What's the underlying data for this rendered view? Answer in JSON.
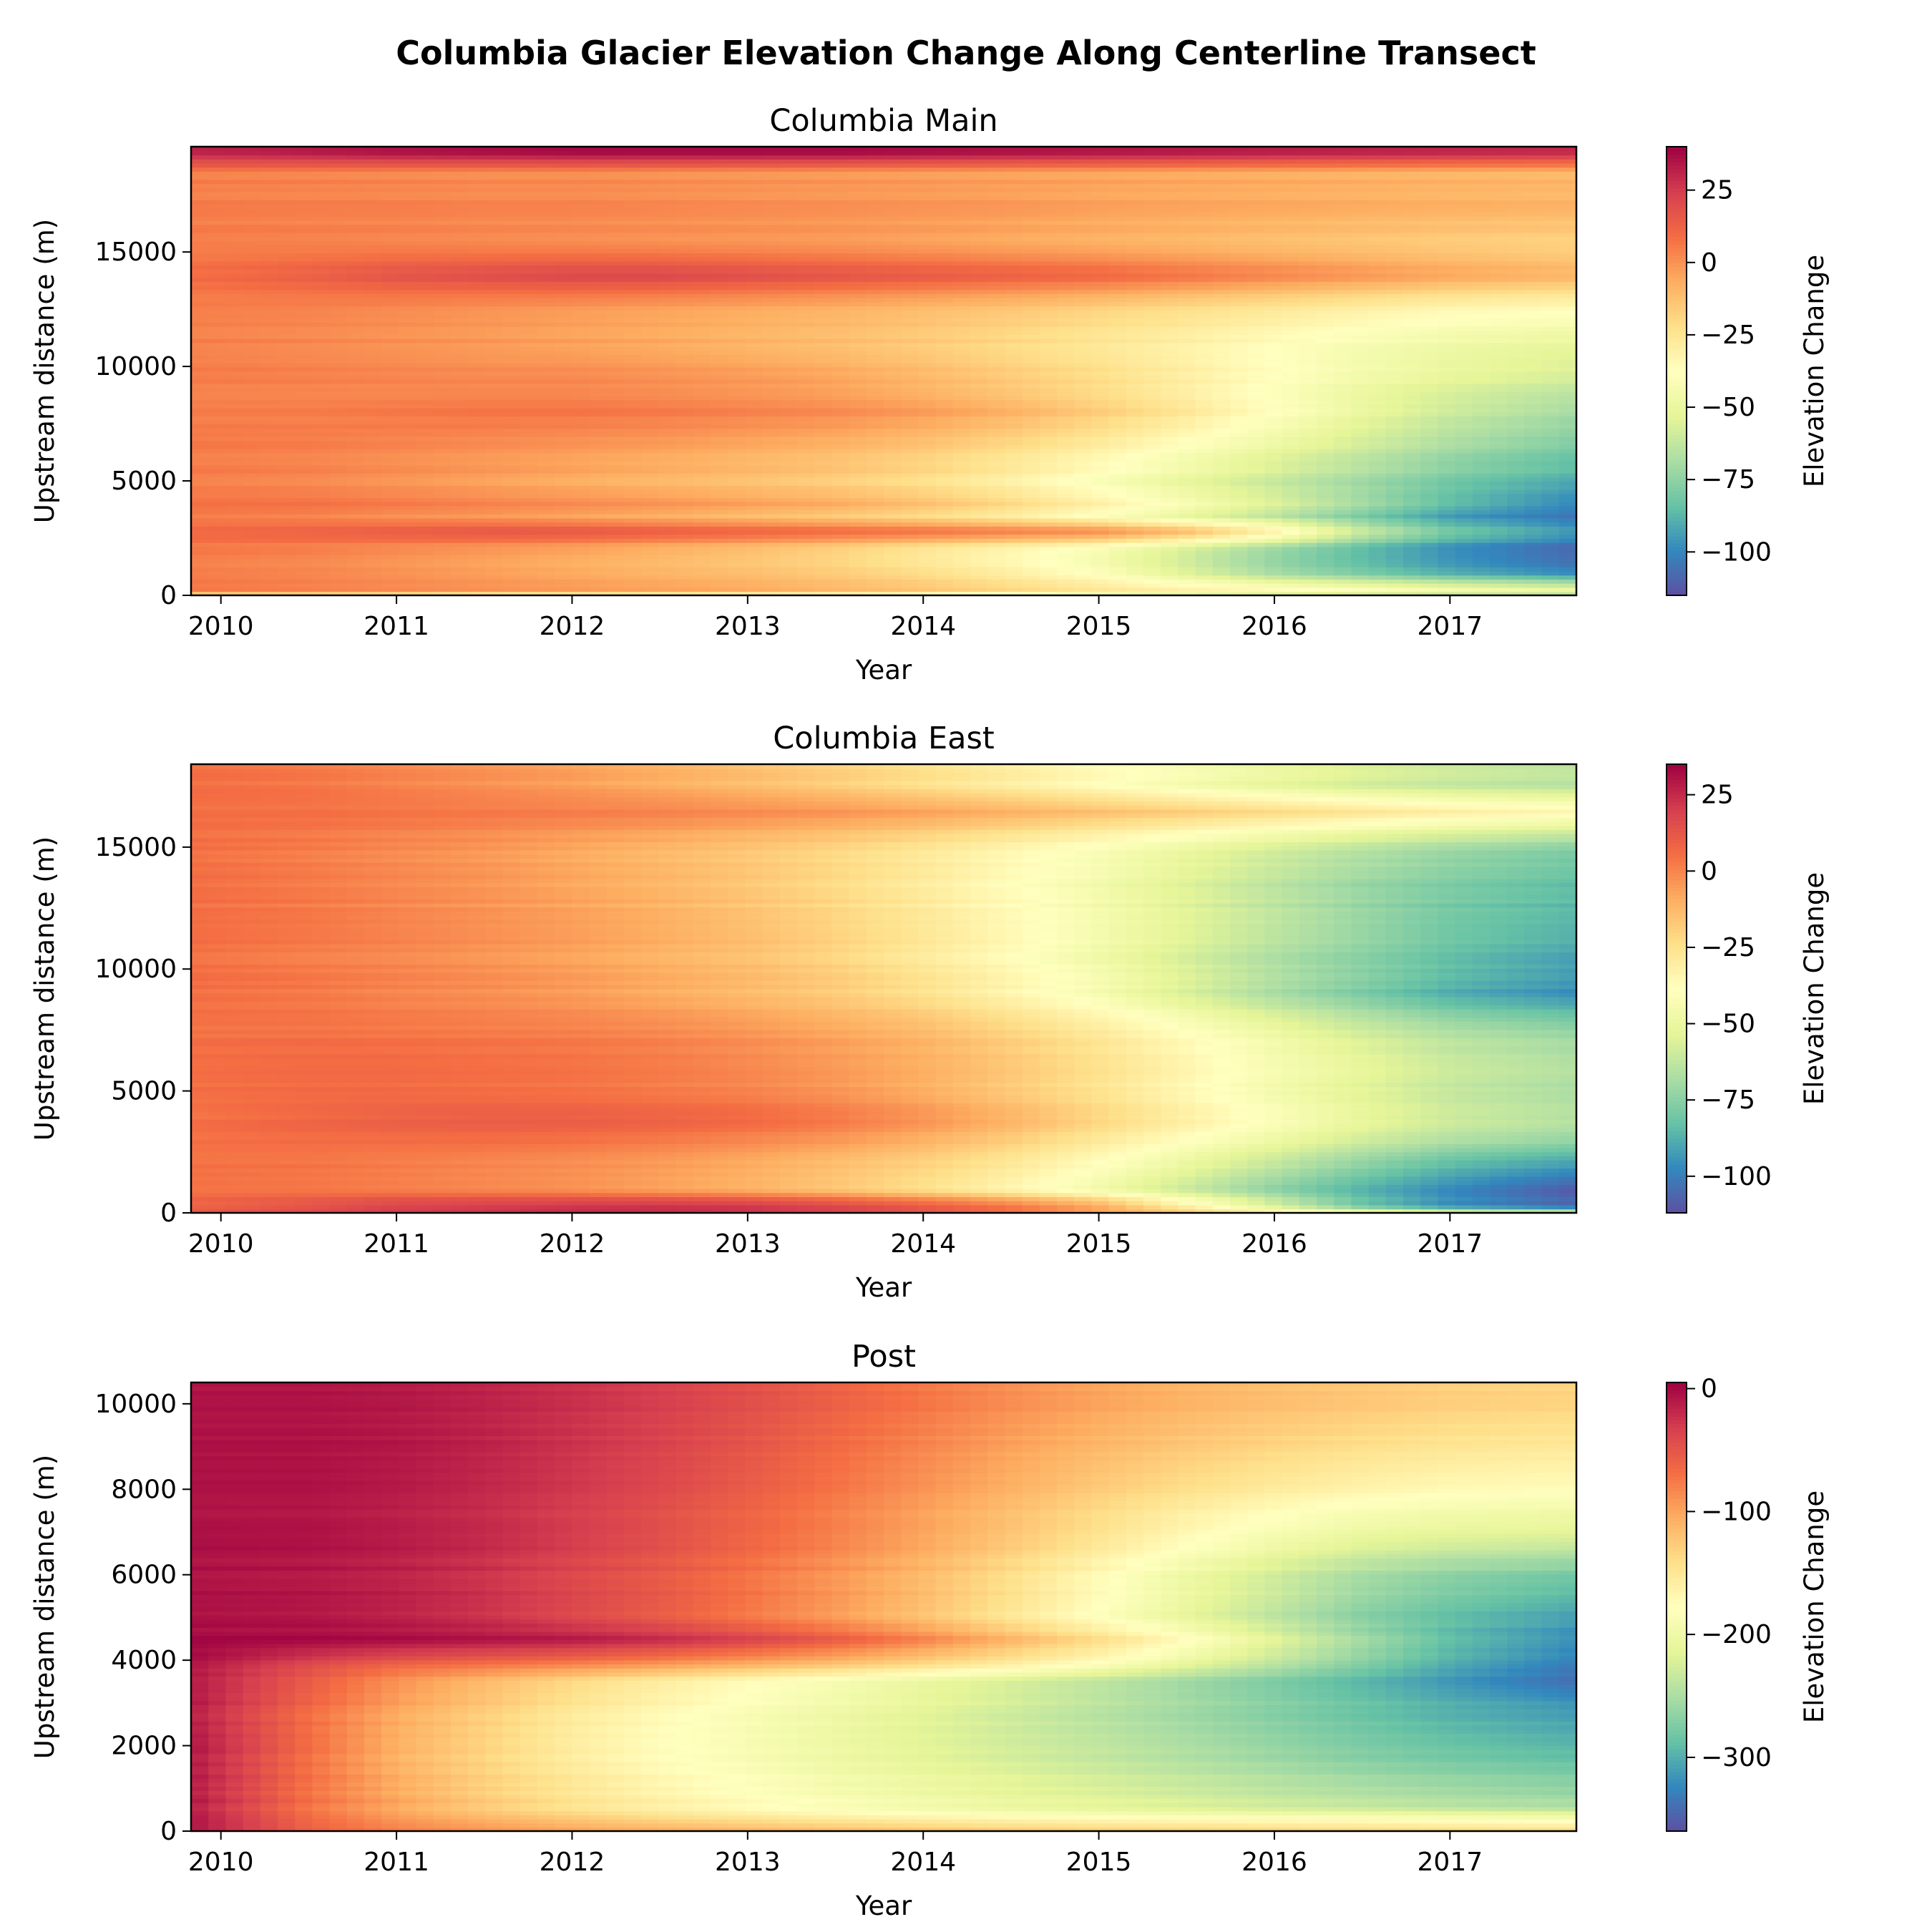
{
  "figure": {
    "title": "Columbia Glacier Elevation Change Along Centerline Transect"
  },
  "chart_data": [
    {
      "type": "heatmap",
      "title": "Columbia Main",
      "xlabel": "Year",
      "ylabel": "Upstream distance (m)",
      "colorbar_label": "Elevation Change",
      "colormap": "Spectral",
      "xlim": [
        2009.83,
        2017.72
      ],
      "ylim": [
        0,
        19600
      ],
      "xticks": [
        2010,
        2011,
        2012,
        2013,
        2014,
        2015,
        2016,
        2017
      ],
      "xtick_labels": [
        "2010",
        "2011",
        "2012",
        "2013",
        "2014",
        "2015",
        "2016",
        "2017"
      ],
      "yticks": [
        0,
        5000,
        10000,
        15000
      ],
      "ytick_labels": [
        "0",
        "5000",
        "10000",
        "15000"
      ],
      "clim": [
        -115,
        40
      ],
      "cbar_ticks": [
        25,
        0,
        -25,
        -50,
        -75,
        -100
      ],
      "cbar_tick_labels": [
        "25",
        "0",
        "−25",
        "−50",
        "−75",
        "−100"
      ],
      "x": [
        2009.83,
        2010.5,
        2011.0,
        2011.5,
        2012.0,
        2012.5,
        2013.0,
        2013.5,
        2014.0,
        2014.5,
        2015.0,
        2015.5,
        2016.0,
        2016.5,
        2017.0,
        2017.72
      ],
      "y": [
        0,
        300,
        1000,
        2000,
        2800,
        3500,
        4000,
        5000,
        6500,
        8000,
        9500,
        11000,
        12500,
        14000,
        15500,
        17000,
        18500,
        19300
      ],
      "z": [
        [
          -20,
          -22,
          -25,
          -28,
          -30,
          -32,
          -34,
          -36,
          -40,
          -45,
          -50,
          -52,
          -55,
          -58,
          -60,
          -62
        ],
        [
          8,
          6,
          4,
          2,
          0,
          -2,
          -4,
          -8,
          -12,
          -18,
          -24,
          -30,
          -35,
          -40,
          -45,
          -50
        ],
        [
          5,
          3,
          0,
          -3,
          -6,
          -9,
          -12,
          -16,
          -22,
          -30,
          -40,
          -55,
          -70,
          -80,
          -90,
          -100
        ],
        [
          5,
          3,
          0,
          -3,
          -6,
          -10,
          -14,
          -20,
          -28,
          -36,
          -45,
          -60,
          -75,
          -88,
          -100,
          -110
        ],
        [
          10,
          12,
          14,
          16,
          16,
          14,
          12,
          10,
          8,
          5,
          2,
          -10,
          -30,
          -60,
          -80,
          -95
        ],
        [
          5,
          3,
          0,
          -2,
          -5,
          -8,
          -12,
          -16,
          -22,
          -30,
          -40,
          -52,
          -65,
          -80,
          -95,
          -105
        ],
        [
          8,
          8,
          6,
          4,
          2,
          0,
          -3,
          -6,
          -12,
          -20,
          -30,
          -42,
          -55,
          -70,
          -85,
          -100
        ],
        [
          5,
          3,
          0,
          -3,
          -6,
          -9,
          -12,
          -16,
          -22,
          -30,
          -40,
          -50,
          -60,
          -70,
          -80,
          -90
        ],
        [
          5,
          4,
          2,
          0,
          -2,
          -4,
          -7,
          -10,
          -15,
          -22,
          -30,
          -40,
          -50,
          -60,
          -70,
          -80
        ],
        [
          5,
          5,
          6,
          7,
          7,
          6,
          4,
          2,
          -2,
          -8,
          -16,
          -26,
          -38,
          -50,
          -60,
          -70
        ],
        [
          5,
          4,
          3,
          2,
          2,
          0,
          -2,
          -5,
          -10,
          -16,
          -22,
          -30,
          -38,
          -46,
          -52,
          -58
        ],
        [
          5,
          3,
          1,
          -1,
          -3,
          -5,
          -8,
          -11,
          -15,
          -20,
          -25,
          -30,
          -36,
          -42,
          -46,
          -50
        ],
        [
          5,
          4,
          2,
          0,
          -2,
          -4,
          -6,
          -8,
          -11,
          -14,
          -18,
          -22,
          -26,
          -30,
          -34,
          -36
        ],
        [
          10,
          14,
          18,
          20,
          22,
          22,
          20,
          18,
          16,
          14,
          12,
          8,
          4,
          0,
          -4,
          -8
        ],
        [
          5,
          4,
          3,
          2,
          1,
          0,
          -1,
          -2,
          -4,
          -6,
          -8,
          -10,
          -12,
          -14,
          -16,
          -18
        ],
        [
          5,
          4,
          4,
          3,
          3,
          2,
          1,
          0,
          -1,
          -2,
          -4,
          -5,
          -6,
          -7,
          -8,
          -9
        ],
        [
          5,
          4,
          3,
          2,
          2,
          1,
          0,
          -1,
          -2,
          -3,
          -4,
          -5,
          -6,
          -7,
          -8,
          -9
        ],
        [
          30,
          32,
          34,
          35,
          36,
          36,
          36,
          36,
          35,
          34,
          33,
          32,
          31,
          30,
          29,
          28
        ]
      ]
    },
    {
      "type": "heatmap",
      "title": "Columbia East",
      "xlabel": "Year",
      "ylabel": "Upstream distance (m)",
      "colorbar_label": "Elevation Change",
      "colormap": "Spectral",
      "xlim": [
        2009.83,
        2017.72
      ],
      "ylim": [
        0,
        18400
      ],
      "xticks": [
        2010,
        2011,
        2012,
        2013,
        2014,
        2015,
        2016,
        2017
      ],
      "xtick_labels": [
        "2010",
        "2011",
        "2012",
        "2013",
        "2014",
        "2015",
        "2016",
        "2017"
      ],
      "yticks": [
        0,
        5000,
        10000,
        15000
      ],
      "ytick_labels": [
        "0",
        "5000",
        "10000",
        "15000"
      ],
      "clim": [
        -112,
        35
      ],
      "cbar_ticks": [
        25,
        0,
        -25,
        -50,
        -75,
        -100
      ],
      "cbar_tick_labels": [
        "25",
        "0",
        "−25",
        "−50",
        "−75",
        "−100"
      ],
      "x": [
        2009.83,
        2010.5,
        2011.0,
        2011.5,
        2012.0,
        2012.5,
        2013.0,
        2013.5,
        2014.0,
        2014.5,
        2015.0,
        2015.5,
        2016.0,
        2016.5,
        2017.0,
        2017.72
      ],
      "y": [
        0,
        300,
        1000,
        2000,
        3000,
        4000,
        5000,
        6000,
        7500,
        9000,
        10500,
        12000,
        13500,
        15000,
        16500,
        17500,
        18400
      ],
      "z": [
        [
          10,
          14,
          18,
          20,
          22,
          22,
          20,
          16,
          10,
          2,
          -10,
          -20,
          -30,
          -40,
          -50,
          -55
        ],
        [
          10,
          15,
          20,
          22,
          24,
          25,
          24,
          20,
          14,
          6,
          -6,
          -30,
          -55,
          -80,
          -95,
          -105
        ],
        [
          5,
          4,
          2,
          0,
          -2,
          -6,
          -10,
          -16,
          -24,
          -34,
          -46,
          -60,
          -74,
          -86,
          -96,
          -108
        ],
        [
          5,
          4,
          2,
          0,
          -2,
          -5,
          -9,
          -14,
          -20,
          -28,
          -38,
          -50,
          -62,
          -74,
          -84,
          -92
        ],
        [
          5,
          6,
          6,
          6,
          5,
          3,
          0,
          -4,
          -10,
          -18,
          -28,
          -38,
          -48,
          -58,
          -66,
          -72
        ],
        [
          5,
          8,
          10,
          11,
          11,
          10,
          8,
          4,
          -2,
          -10,
          -20,
          -30,
          -40,
          -50,
          -58,
          -64
        ],
        [
          5,
          6,
          6,
          5,
          4,
          2,
          0,
          -4,
          -10,
          -18,
          -26,
          -36,
          -46,
          -54,
          -62,
          -68
        ],
        [
          5,
          6,
          6,
          5,
          4,
          2,
          -1,
          -5,
          -10,
          -17,
          -25,
          -34,
          -44,
          -52,
          -60,
          -66
        ],
        [
          5,
          5,
          4,
          3,
          2,
          0,
          -3,
          -7,
          -12,
          -20,
          -28,
          -38,
          -48,
          -58,
          -66,
          -72
        ],
        [
          5,
          3,
          0,
          -2,
          -5,
          -9,
          -13,
          -18,
          -25,
          -34,
          -44,
          -56,
          -68,
          -78,
          -88,
          -96
        ],
        [
          5,
          2,
          0,
          -3,
          -6,
          -10,
          -14,
          -20,
          -28,
          -36,
          -46,
          -56,
          -66,
          -74,
          -82,
          -90
        ],
        [
          5,
          3,
          0,
          -3,
          -6,
          -10,
          -15,
          -21,
          -28,
          -36,
          -45,
          -54,
          -63,
          -72,
          -80,
          -86
        ],
        [
          5,
          2,
          -1,
          -4,
          -8,
          -12,
          -17,
          -23,
          -30,
          -38,
          -46,
          -55,
          -64,
          -72,
          -78,
          -84
        ],
        [
          5,
          2,
          -1,
          -4,
          -8,
          -12,
          -16,
          -21,
          -27,
          -34,
          -41,
          -49,
          -57,
          -64,
          -70,
          -76
        ],
        [
          5,
          5,
          4,
          3,
          2,
          1,
          -1,
          -3,
          -6,
          -10,
          -14,
          -18,
          -22,
          -26,
          -30,
          -34
        ],
        [
          5,
          3,
          0,
          -3,
          -6,
          -10,
          -14,
          -19,
          -25,
          -31,
          -38,
          -45,
          -52,
          -58,
          -62,
          -65
        ],
        [
          5,
          3,
          0,
          -3,
          -6,
          -10,
          -14,
          -19,
          -24,
          -30,
          -36,
          -42,
          -48,
          -54,
          -58,
          -62
        ]
      ]
    },
    {
      "type": "heatmap",
      "title": "Post",
      "xlabel": "Year",
      "ylabel": "Upstream distance (m)",
      "colorbar_label": "Elevation Change",
      "colormap": "Spectral",
      "xlim": [
        2009.83,
        2017.72
      ],
      "ylim": [
        0,
        10500
      ],
      "xticks": [
        2010,
        2011,
        2012,
        2013,
        2014,
        2015,
        2016,
        2017
      ],
      "xtick_labels": [
        "2010",
        "2011",
        "2012",
        "2013",
        "2014",
        "2015",
        "2016",
        "2017"
      ],
      "yticks": [
        0,
        2000,
        4000,
        6000,
        8000,
        10000
      ],
      "ytick_labels": [
        "0",
        "2000",
        "4000",
        "6000",
        "8000",
        "10000"
      ],
      "clim": [
        -360,
        5
      ],
      "cbar_ticks": [
        0,
        -100,
        -200,
        -300
      ],
      "cbar_tick_labels": [
        "0",
        "−100",
        "−200",
        "−300"
      ],
      "x": [
        2009.83,
        2010.5,
        2011.0,
        2011.5,
        2012.0,
        2012.5,
        2013.0,
        2013.5,
        2014.0,
        2014.5,
        2015.0,
        2015.5,
        2016.0,
        2016.5,
        2017.0,
        2017.72
      ],
      "y": [
        0,
        400,
        600,
        1200,
        2000,
        2800,
        3500,
        3900,
        4500,
        5000,
        6000,
        7000,
        8000,
        9000,
        10000,
        10500
      ],
      "z": [
        [
          -10,
          -60,
          -80,
          -90,
          -100,
          -105,
          -110,
          -115,
          -120,
          -125,
          -128,
          -130,
          -132,
          -134,
          -136,
          -138
        ],
        [
          -10,
          -70,
          -100,
          -120,
          -135,
          -150,
          -160,
          -170,
          -178,
          -185,
          -190,
          -195,
          -198,
          -200,
          -205,
          -210
        ],
        [
          -10,
          -70,
          -100,
          -125,
          -145,
          -160,
          -172,
          -185,
          -195,
          -205,
          -212,
          -220,
          -228,
          -235,
          -242,
          -250
        ],
        [
          -10,
          -70,
          -105,
          -130,
          -150,
          -168,
          -182,
          -195,
          -205,
          -215,
          -225,
          -235,
          -245,
          -255,
          -262,
          -270
        ],
        [
          -10,
          -70,
          -110,
          -135,
          -160,
          -178,
          -192,
          -205,
          -218,
          -230,
          -240,
          -252,
          -265,
          -278,
          -288,
          -298
        ],
        [
          -10,
          -65,
          -100,
          -125,
          -150,
          -168,
          -184,
          -198,
          -212,
          -226,
          -240,
          -254,
          -268,
          -282,
          -295,
          -308
        ],
        [
          -10,
          -55,
          -90,
          -115,
          -138,
          -158,
          -176,
          -192,
          -208,
          -224,
          -240,
          -258,
          -276,
          -295,
          -315,
          -340
        ],
        [
          -5,
          -40,
          -60,
          -70,
          -80,
          -92,
          -106,
          -120,
          -138,
          -158,
          -180,
          -210,
          -240,
          -270,
          -300,
          -330
        ],
        [
          0,
          0,
          -2,
          -6,
          -10,
          -20,
          -35,
          -55,
          -80,
          -110,
          -140,
          -175,
          -215,
          -255,
          -290,
          -320
        ],
        [
          -5,
          -8,
          -15,
          -25,
          -40,
          -55,
          -75,
          -95,
          -120,
          -150,
          -180,
          -210,
          -240,
          -270,
          -290,
          -310
        ],
        [
          -5,
          -8,
          -14,
          -24,
          -38,
          -52,
          -70,
          -90,
          -112,
          -140,
          -170,
          -200,
          -225,
          -250,
          -265,
          -278
        ],
        [
          -5,
          -6,
          -12,
          -20,
          -32,
          -46,
          -62,
          -80,
          -100,
          -122,
          -145,
          -170,
          -190,
          -205,
          -212,
          -215
        ],
        [
          -5,
          -5,
          -10,
          -18,
          -28,
          -40,
          -55,
          -72,
          -90,
          -108,
          -126,
          -142,
          -155,
          -165,
          -172,
          -175
        ],
        [
          -5,
          -5,
          -8,
          -15,
          -25,
          -36,
          -50,
          -66,
          -82,
          -98,
          -112,
          -124,
          -134,
          -142,
          -148,
          -152
        ],
        [
          -5,
          -5,
          -8,
          -14,
          -22,
          -32,
          -44,
          -58,
          -72,
          -86,
          -98,
          -108,
          -116,
          -122,
          -128,
          -132
        ],
        [
          -5,
          -5,
          -8,
          -14,
          -22,
          -32,
          -44,
          -58,
          -72,
          -86,
          -98,
          -108,
          -116,
          -122,
          -128,
          -132
        ]
      ]
    }
  ]
}
